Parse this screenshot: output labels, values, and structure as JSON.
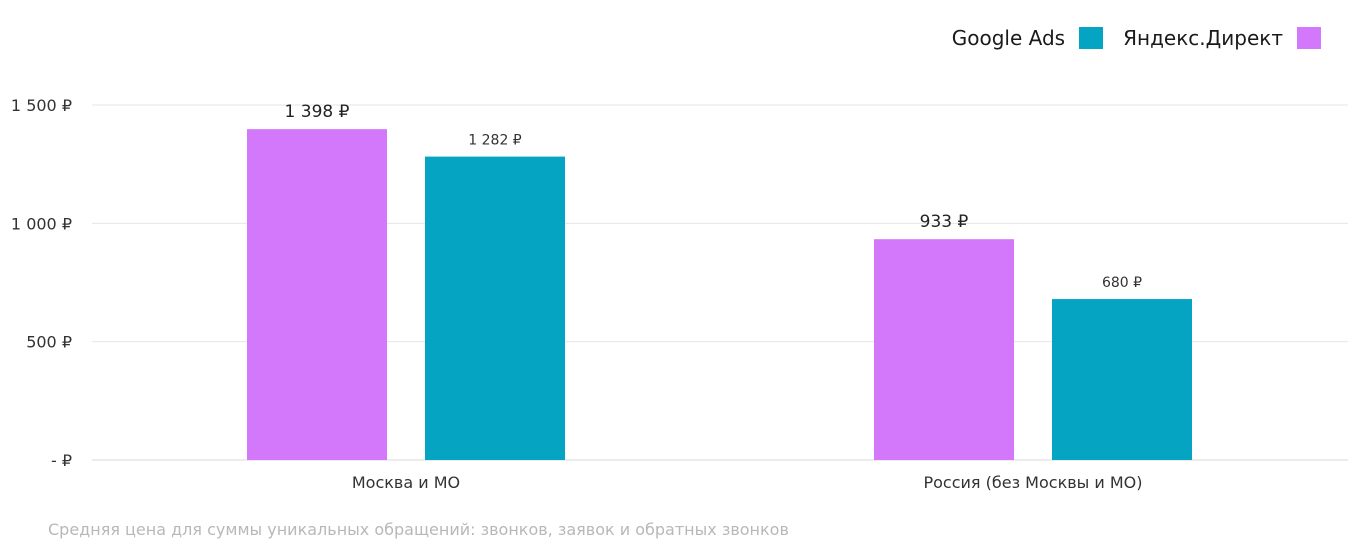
{
  "legend": {
    "items": [
      {
        "label": "Google Ads",
        "color": "#04a4c2"
      },
      {
        "label": "Яндекс.Директ",
        "color": "#d378fa"
      }
    ]
  },
  "footnote": "Средняя цена для суммы уникальных обращений: звонков, заявок и обратных звонков",
  "chart_data": {
    "type": "bar",
    "categories": [
      "Москва и МО",
      "Россия (без Москвы и МО)"
    ],
    "series": [
      {
        "name": "Яндекс.Директ",
        "color": "#d378fa",
        "values": [
          1398,
          933
        ],
        "labels": [
          "1 398 ₽",
          "933 ₽"
        ]
      },
      {
        "name": "Google Ads",
        "color": "#04a4c2",
        "values": [
          1282,
          680
        ],
        "labels": [
          "1 282 ₽",
          "680 ₽"
        ]
      }
    ],
    "ylim": [
      0,
      1500
    ],
    "yticks": [
      {
        "value": 0,
        "label": "-   ₽"
      },
      {
        "value": 500,
        "label": "500 ₽"
      },
      {
        "value": 1000,
        "label": "1 000 ₽"
      },
      {
        "value": 1500,
        "label": "1 500 ₽"
      }
    ],
    "grid": true,
    "legend_position": "top-right",
    "title": "",
    "xlabel": "",
    "ylabel": ""
  }
}
